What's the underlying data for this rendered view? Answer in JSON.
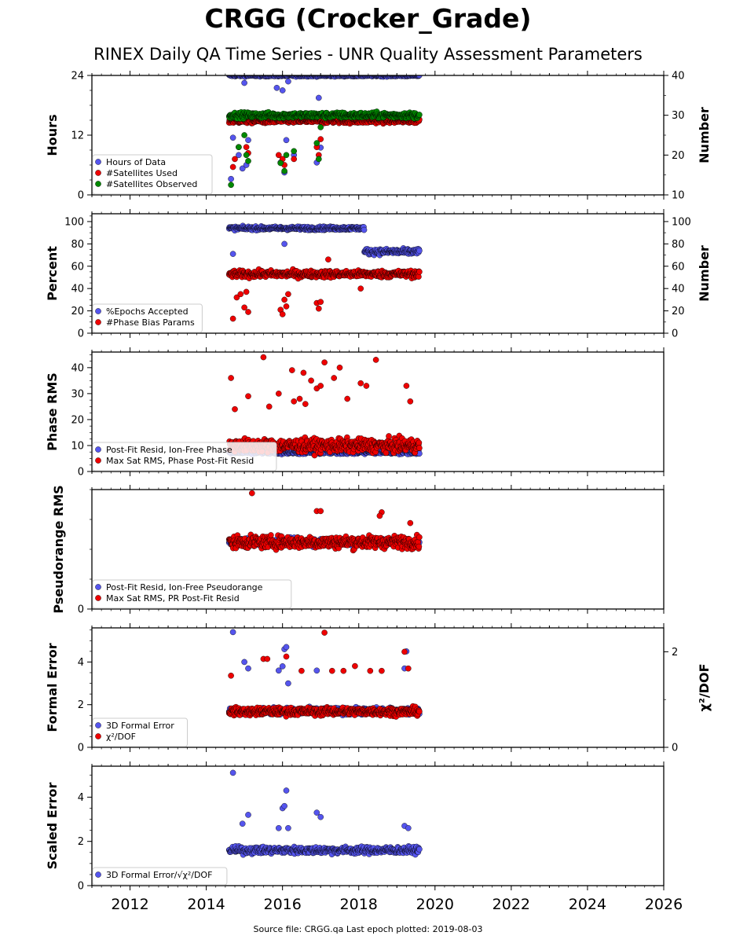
{
  "title": "CRGG (Crocker_Grade)",
  "subtitle": "RINEX Daily QA Time Series - UNR Quality Assessment Parameters",
  "source": "Source file: CRGG.qa Last epoch plotted: 2019-08-03",
  "chart_data": [
    {
      "type": "scatter",
      "ylabel": "Hours",
      "ylabel_right": "Number",
      "xlim": [
        2011.0,
        2026.0
      ],
      "xticks": [
        2012,
        2014,
        2016,
        2018,
        2020,
        2022,
        2024,
        2026
      ],
      "ylim": [
        0,
        24
      ],
      "yticks": [
        0,
        12,
        24
      ],
      "ylim_right": [
        10,
        40
      ],
      "yticks_right": [
        10,
        20,
        30,
        40
      ],
      "legend_position": "lower-left",
      "series": [
        {
          "name": "Hours of Data",
          "color": "#5555ee",
          "axis": "left",
          "x_range": [
            2014.6,
            2019.6
          ],
          "typical": 24,
          "spread": 0.2,
          "outliers": [
            [
              2014.65,
              3.2
            ],
            [
              2014.7,
              11.5
            ],
            [
              2014.85,
              8
            ],
            [
              2014.95,
              5.3
            ],
            [
              2015.0,
              22.5
            ],
            [
              2015.05,
              6
            ],
            [
              2015.1,
              11
            ],
            [
              2015.85,
              21.5
            ],
            [
              2015.95,
              6.5
            ],
            [
              2016.0,
              21
            ],
            [
              2016.05,
              4.5
            ],
            [
              2016.1,
              11
            ],
            [
              2016.15,
              22.8
            ],
            [
              2016.3,
              8
            ],
            [
              2016.9,
              6.5
            ],
            [
              2016.95,
              19.5
            ],
            [
              2017.0,
              9.5
            ]
          ]
        },
        {
          "name": "#Satellites Used",
          "color": "#ee0000",
          "axis": "right",
          "x_range": [
            2014.6,
            2019.6
          ],
          "typical": 28.6,
          "spread": 0.6,
          "outliers": [
            [
              2014.7,
              17
            ],
            [
              2014.75,
              19
            ],
            [
              2014.85,
              22
            ],
            [
              2015.05,
              22
            ],
            [
              2015.1,
              20.5
            ],
            [
              2015.9,
              20
            ],
            [
              2016.0,
              19
            ],
            [
              2016.05,
              17.5
            ],
            [
              2016.3,
              19
            ],
            [
              2016.9,
              22
            ],
            [
              2016.95,
              20
            ],
            [
              2017.0,
              24
            ]
          ]
        },
        {
          "name": "#Satellites Observed",
          "color": "#008800",
          "axis": "right",
          "x_range": [
            2014.6,
            2019.6
          ],
          "typical": 30,
          "spread": 0.7,
          "outliers": [
            [
              2014.65,
              12.5
            ],
            [
              2014.85,
              22
            ],
            [
              2015.0,
              25
            ],
            [
              2015.05,
              20
            ],
            [
              2015.1,
              18.5
            ],
            [
              2015.95,
              18
            ],
            [
              2016.05,
              16
            ],
            [
              2016.1,
              20
            ],
            [
              2016.3,
              21
            ],
            [
              2016.9,
              23
            ],
            [
              2016.95,
              19
            ],
            [
              2017.0,
              27
            ]
          ]
        }
      ]
    },
    {
      "type": "scatter",
      "ylabel": "Percent",
      "ylabel_right": "Number",
      "xlim": [
        2011.0,
        2026.0
      ],
      "xticks": [
        2012,
        2014,
        2016,
        2018,
        2020,
        2022,
        2024,
        2026
      ],
      "ylim": [
        0,
        107
      ],
      "yticks": [
        0,
        20,
        40,
        60,
        80,
        100
      ],
      "ylim_right": [
        0,
        107
      ],
      "yticks_right": [
        0,
        20,
        40,
        60,
        80,
        100
      ],
      "legend_position": "lower-left",
      "series": [
        {
          "name": "%Epochs Accepted",
          "color": "#5555ee",
          "axis": "left",
          "segments": [
            {
              "x_range": [
                2014.6,
                2018.15
              ],
              "typical": 94,
              "spread": 1.5
            },
            {
              "x_range": [
                2018.15,
                2019.6
              ],
              "typical": 73,
              "spread": 2.5
            }
          ],
          "outliers": [
            [
              2014.7,
              71
            ],
            [
              2016.05,
              80
            ]
          ]
        },
        {
          "name": "#Phase Bias Params",
          "color": "#ee0000",
          "axis": "right",
          "x_range": [
            2014.6,
            2019.6
          ],
          "typical": 53,
          "spread": 3,
          "outliers": [
            [
              2014.7,
              13
            ],
            [
              2014.8,
              32
            ],
            [
              2014.9,
              35
            ],
            [
              2015.0,
              23
            ],
            [
              2015.1,
              19
            ],
            [
              2015.05,
              37
            ],
            [
              2015.95,
              21
            ],
            [
              2016.0,
              17
            ],
            [
              2016.05,
              30
            ],
            [
              2016.1,
              24
            ],
            [
              2016.15,
              35
            ],
            [
              2016.9,
              27
            ],
            [
              2016.95,
              22
            ],
            [
              2017.2,
              66
            ],
            [
              2017.0,
              28
            ],
            [
              2018.05,
              40
            ]
          ]
        }
      ]
    },
    {
      "type": "scatter",
      "ylabel": "Phase RMS",
      "xlim": [
        2011.0,
        2026.0
      ],
      "xticks": [
        2012,
        2014,
        2016,
        2018,
        2020,
        2022,
        2024,
        2026
      ],
      "ylim": [
        0,
        46
      ],
      "yticks": [
        0,
        10,
        20,
        30,
        40
      ],
      "legend_position": "lower-left",
      "series": [
        {
          "name": "Post-Fit Resid, Ion-Free Phase",
          "color": "#5555ee",
          "axis": "left",
          "x_range": [
            2014.6,
            2019.6
          ],
          "typical": 7.5,
          "spread": 0.8,
          "outliers": []
        },
        {
          "name": "Max Sat RMS, Phase Post-Fit Resid",
          "color": "#ee0000",
          "axis": "left",
          "x_range": [
            2014.6,
            2019.6
          ],
          "typical": 10,
          "spread": 2.5,
          "outliers": [
            [
              2014.65,
              36
            ],
            [
              2014.75,
              24
            ],
            [
              2015.1,
              29
            ],
            [
              2015.5,
              44
            ],
            [
              2015.65,
              25
            ],
            [
              2015.9,
              30
            ],
            [
              2016.25,
              39
            ],
            [
              2016.3,
              27
            ],
            [
              2016.55,
              38
            ],
            [
              2016.45,
              28
            ],
            [
              2016.6,
              26
            ],
            [
              2016.75,
              35
            ],
            [
              2016.9,
              32
            ],
            [
              2017.0,
              33
            ],
            [
              2017.1,
              42
            ],
            [
              2017.35,
              36
            ],
            [
              2017.5,
              40
            ],
            [
              2017.7,
              28
            ],
            [
              2018.05,
              34
            ],
            [
              2018.2,
              33
            ],
            [
              2018.45,
              43
            ],
            [
              2019.25,
              33
            ],
            [
              2019.35,
              27
            ]
          ]
        }
      ]
    },
    {
      "type": "scatter",
      "ylabel": "Pseudorange RMS",
      "xlim": [
        2011.0,
        2026.0
      ],
      "xticks": [
        2012,
        2014,
        2016,
        2018,
        2020,
        2022,
        2024,
        2026
      ],
      "ylim": [
        0,
        1
      ],
      "yticks": [
        0
      ],
      "legend_position": "lower-left",
      "series": [
        {
          "name": "Post-Fit Resid, Ion-Free Pseudorange",
          "color": "#5555ee",
          "axis": "left",
          "x_range": [
            2014.6,
            2019.6
          ],
          "typical": 0.56,
          "spread": 0.03,
          "outliers": []
        },
        {
          "name": "Max Sat RMS, PR Post-Fit Resid",
          "color": "#ee0000",
          "axis": "left",
          "x_range": [
            2014.6,
            2019.6
          ],
          "typical": 0.56,
          "spread": 0.05,
          "outliers": [
            [
              2015.2,
              0.97
            ],
            [
              2016.9,
              0.82
            ],
            [
              2017.0,
              0.82
            ],
            [
              2018.6,
              0.81
            ],
            [
              2018.55,
              0.78
            ],
            [
              2019.35,
              0.72
            ]
          ]
        }
      ]
    },
    {
      "type": "scatter",
      "ylabel": "Formal Error",
      "ylabel_right": "χ²/DOF",
      "xlim": [
        2011.0,
        2026.0
      ],
      "xticks": [
        2012,
        2014,
        2016,
        2018,
        2020,
        2022,
        2024,
        2026
      ],
      "ylim": [
        0,
        5.6
      ],
      "yticks": [
        0,
        2,
        4
      ],
      "ylim_right": [
        0,
        2.5
      ],
      "yticks_right": [
        0,
        2
      ],
      "legend_position": "lower-left",
      "series": [
        {
          "name": "3D Formal Error",
          "color": "#5555ee",
          "axis": "left",
          "x_range": [
            2014.6,
            2019.6
          ],
          "typical": 1.7,
          "spread": 0.15,
          "outliers": [
            [
              2014.7,
              5.4
            ],
            [
              2015.0,
              4.0
            ],
            [
              2015.1,
              3.7
            ],
            [
              2015.9,
              3.6
            ],
            [
              2016.0,
              3.8
            ],
            [
              2016.05,
              4.6
            ],
            [
              2016.1,
              4.7
            ],
            [
              2016.15,
              3.0
            ],
            [
              2016.9,
              3.6
            ],
            [
              2019.2,
              3.7
            ],
            [
              2019.25,
              4.5
            ]
          ]
        },
        {
          "name": "χ²/DOF",
          "color": "#ee0000",
          "axis": "right",
          "x_range": [
            2014.6,
            2019.6
          ],
          "typical": 0.75,
          "spread": 0.08,
          "outliers": [
            [
              2014.65,
              1.5
            ],
            [
              2015.5,
              1.85
            ],
            [
              2015.6,
              1.85
            ],
            [
              2016.1,
              1.9
            ],
            [
              2016.5,
              1.6
            ],
            [
              2017.1,
              2.4
            ],
            [
              2017.3,
              1.6
            ],
            [
              2017.6,
              1.6
            ],
            [
              2017.9,
              1.7
            ],
            [
              2018.3,
              1.6
            ],
            [
              2018.6,
              1.6
            ],
            [
              2019.2,
              2.0
            ],
            [
              2019.3,
              1.65
            ]
          ]
        }
      ]
    },
    {
      "type": "scatter",
      "ylabel": "Scaled Error",
      "xlim": [
        2011.0,
        2026.0
      ],
      "xticks": [
        2012,
        2014,
        2016,
        2018,
        2020,
        2022,
        2024,
        2026
      ],
      "ylim": [
        0,
        5.4
      ],
      "yticks": [
        0,
        2,
        4
      ],
      "legend_position": "lower-left",
      "series": [
        {
          "name": "3D Formal Error/√χ²/DOF",
          "color": "#5555ee",
          "axis": "left",
          "x_range": [
            2014.6,
            2019.6
          ],
          "typical": 1.6,
          "spread": 0.15,
          "outliers": [
            [
              2014.7,
              5.1
            ],
            [
              2014.95,
              2.8
            ],
            [
              2015.1,
              3.2
            ],
            [
              2015.9,
              2.6
            ],
            [
              2016.0,
              3.5
            ],
            [
              2016.05,
              3.6
            ],
            [
              2016.1,
              4.3
            ],
            [
              2016.15,
              2.6
            ],
            [
              2016.9,
              3.3
            ],
            [
              2017.0,
              3.1
            ],
            [
              2019.2,
              2.7
            ],
            [
              2019.3,
              2.6
            ]
          ]
        }
      ]
    }
  ]
}
